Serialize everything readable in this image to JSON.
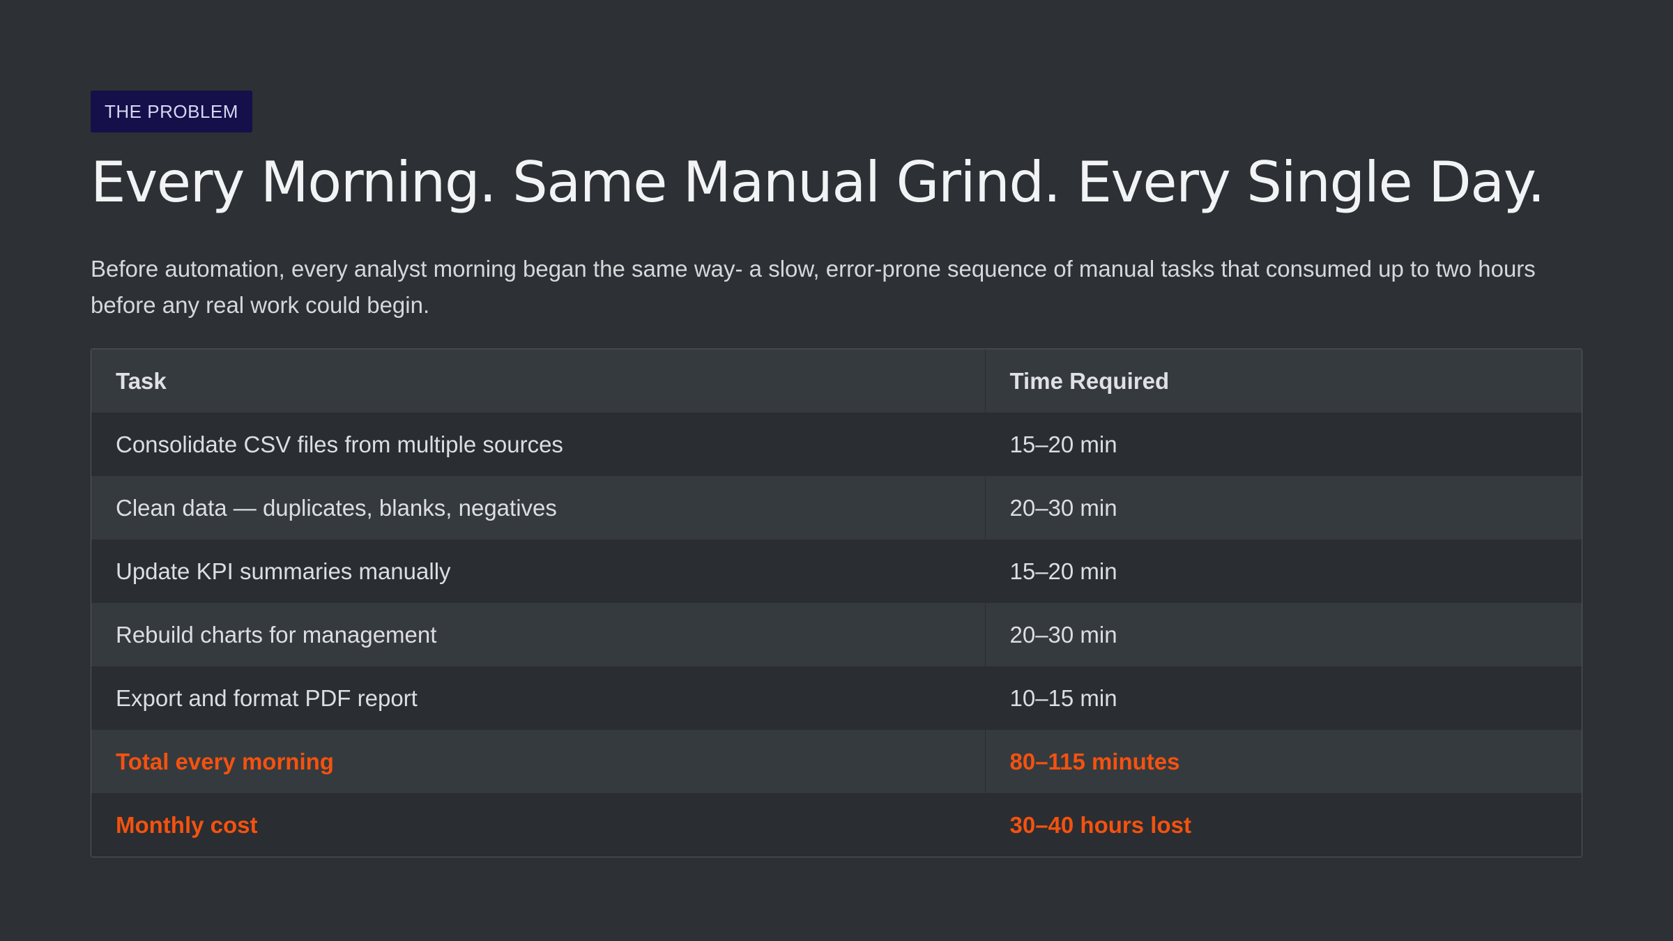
{
  "tag": "THE PROBLEM",
  "title": "Every Morning. Same Manual Grind. Every Single Day.",
  "intro": "Before automation, every analyst morning began the same way- a slow, error-prone sequence of manual tasks that consumed up to two hours before any real work could begin.",
  "table": {
    "headers": [
      "Task",
      "Time Required"
    ],
    "rows": [
      [
        "Consolidate CSV files from multiple sources",
        "15–20 min"
      ],
      [
        "Clean data — duplicates, blanks, negatives",
        "20–30 min"
      ],
      [
        "Update KPI summaries manually",
        "15–20 min"
      ],
      [
        "Rebuild charts for management",
        "20–30 min"
      ],
      [
        "Export and format PDF report",
        "10–15 min"
      ],
      [
        "Total every morning",
        "80–115 minutes"
      ],
      [
        "Monthly cost",
        "30–40 hours lost"
      ]
    ]
  },
  "colors": {
    "background": "#2d3034",
    "tag_background": "#150f4a",
    "accent": "#f4520f"
  }
}
